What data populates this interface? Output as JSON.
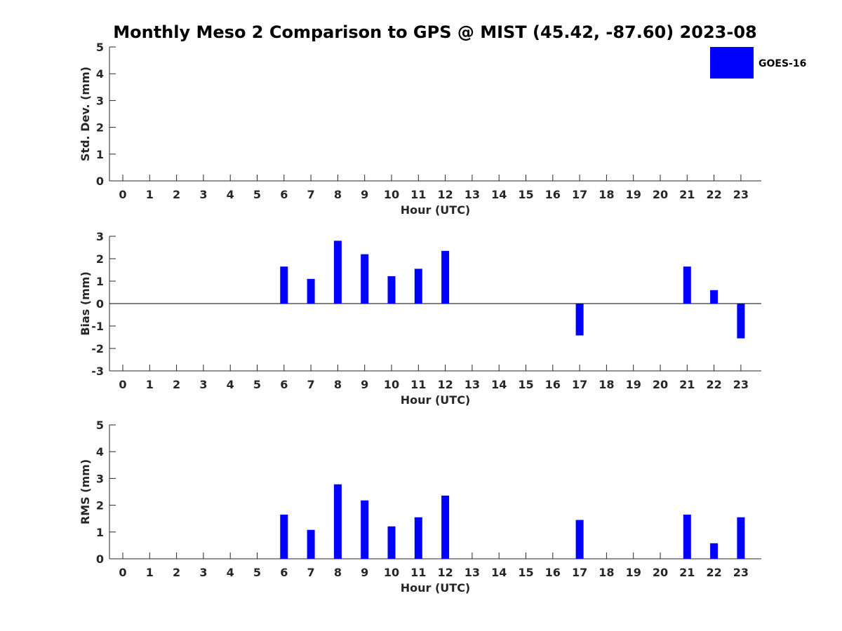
{
  "title": "Monthly Meso 2 Comparison to GPS @ MIST (45.42, -87.60) 2023-08",
  "legend": {
    "label": "GOES-16",
    "color": "#0000ff",
    "position": "top-right"
  },
  "chart_data": [
    {
      "type": "bar",
      "name": "stddev",
      "ylabel": "Std. Dev. (mm)",
      "xlabel": "Hour (UTC)",
      "ylim": [
        0,
        5
      ],
      "yticks": [
        0,
        1,
        2,
        3,
        4,
        5
      ],
      "categories": [
        "0",
        "1",
        "2",
        "3",
        "4",
        "5",
        "6",
        "7",
        "8",
        "9",
        "10",
        "11",
        "12",
        "13",
        "14",
        "15",
        "16",
        "17",
        "18",
        "19",
        "20",
        "21",
        "22",
        "23"
      ],
      "values": [
        null,
        null,
        null,
        null,
        null,
        null,
        null,
        null,
        null,
        null,
        null,
        null,
        null,
        null,
        null,
        null,
        null,
        null,
        null,
        null,
        null,
        null,
        null,
        null
      ],
      "zero_line": false
    },
    {
      "type": "bar",
      "name": "bias",
      "ylabel": "Bias (mm)",
      "xlabel": "Hour (UTC)",
      "ylim": [
        -3,
        3
      ],
      "yticks": [
        -3,
        -2,
        -1,
        0,
        1,
        2,
        3
      ],
      "categories": [
        "0",
        "1",
        "2",
        "3",
        "4",
        "5",
        "6",
        "7",
        "8",
        "9",
        "10",
        "11",
        "12",
        "13",
        "14",
        "15",
        "16",
        "17",
        "18",
        "19",
        "20",
        "21",
        "22",
        "23"
      ],
      "values": [
        null,
        null,
        null,
        null,
        null,
        null,
        1.65,
        1.1,
        2.8,
        2.2,
        1.22,
        1.55,
        2.35,
        null,
        null,
        null,
        null,
        -1.42,
        null,
        null,
        null,
        1.65,
        0.6,
        -1.55
      ],
      "zero_line": true
    },
    {
      "type": "bar",
      "name": "rms",
      "ylabel": "RMS (mm)",
      "xlabel": "Hour (UTC)",
      "ylim": [
        0,
        5
      ],
      "yticks": [
        0,
        1,
        2,
        3,
        4,
        5
      ],
      "categories": [
        "0",
        "1",
        "2",
        "3",
        "4",
        "5",
        "6",
        "7",
        "8",
        "9",
        "10",
        "11",
        "12",
        "13",
        "14",
        "15",
        "16",
        "17",
        "18",
        "19",
        "20",
        "21",
        "22",
        "23"
      ],
      "values": [
        null,
        null,
        null,
        null,
        null,
        null,
        1.65,
        1.08,
        2.78,
        2.18,
        1.21,
        1.55,
        2.36,
        null,
        null,
        null,
        null,
        1.45,
        null,
        null,
        null,
        1.65,
        0.58,
        1.55
      ],
      "zero_line": false
    }
  ]
}
